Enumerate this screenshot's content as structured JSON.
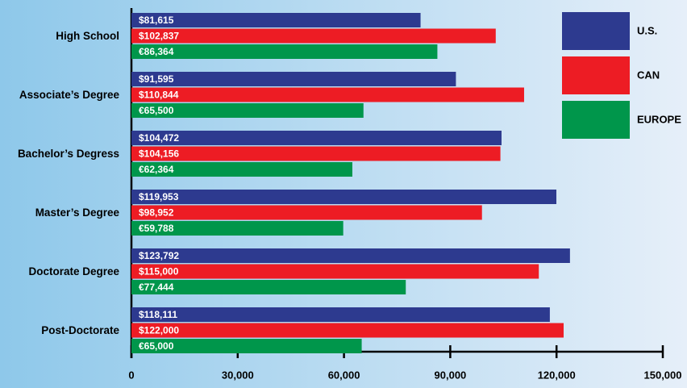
{
  "chart_data": {
    "type": "bar",
    "orientation": "horizontal",
    "categories": [
      "High School",
      "Associate’s Degree",
      "Bachelor’s Degress",
      "Master’s Degree",
      "Doctorate Degree",
      "Post-Doctorate"
    ],
    "series": [
      {
        "name": "U.S.",
        "color": "#2d3a8f",
        "values": [
          81615,
          91595,
          104472,
          119953,
          123792,
          118111
        ],
        "value_labels": [
          "$81,615",
          "$91,595",
          "$104,472",
          "$119,953",
          "$123,792",
          "$118,111"
        ]
      },
      {
        "name": "CAN",
        "color": "#ed1c24",
        "values": [
          102837,
          110844,
          104156,
          98952,
          115000,
          122000
        ],
        "value_labels": [
          "$102,837",
          "$110,844",
          "$104,156",
          "$98,952",
          "$115,000",
          "$122,000"
        ]
      },
      {
        "name": "EUROPE",
        "color": "#00964b",
        "values": [
          86364,
          65500,
          62364,
          59788,
          77444,
          65000
        ],
        "value_labels": [
          "€86,364",
          "€65,500",
          "€62,364",
          "€59,788",
          "€77,444",
          "€65,000"
        ]
      }
    ],
    "xlim": [
      0,
      150000
    ],
    "xticks": [
      0,
      {
        "value": 30000,
        "label": "30,000"
      },
      {
        "value": 60000,
        "label": "60,000"
      },
      {
        "value": 90000,
        "label": "90,000"
      },
      {
        "value": 120000,
        "label": "120,000"
      },
      {
        "value": 150000,
        "label": "150,000"
      }
    ],
    "legend": "top-right"
  }
}
